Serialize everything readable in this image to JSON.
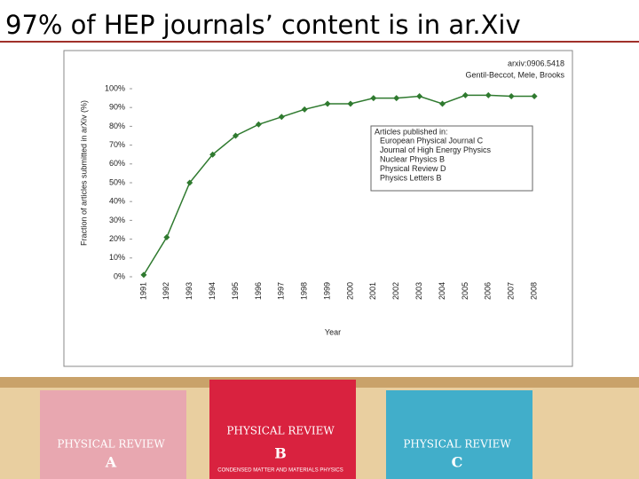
{
  "slide_title": "97% of HEP journals’ content is in ar.Xiv",
  "chart_data": {
    "type": "line",
    "annotations": [
      "arxiv:0906.5418",
      "Gentil-Beccot, Mele, Brooks"
    ],
    "y_label": "Fraction of articles submitted in arXiv (%)",
    "x_label": "Year",
    "legend_title": "Articles published in:",
    "legend_items": [
      "European Physical Journal C",
      "Journal of High Energy Physics",
      "Nuclear Physics B",
      "Physical Review D",
      "Physics Letters B"
    ],
    "categories": [
      "1991",
      "1992",
      "1993",
      "1994",
      "1995",
      "1996",
      "1997",
      "1998",
      "1999",
      "2000",
      "2001",
      "2002",
      "2003",
      "2004",
      "2005",
      "2006",
      "2007",
      "2008"
    ],
    "series": [
      {
        "color": "#2f7a2f",
        "values": [
          1,
          21,
          50,
          65,
          75,
          81,
          85,
          89,
          92,
          92,
          95,
          95,
          96,
          92,
          96.5,
          96.5,
          96,
          96
        ]
      }
    ],
    "ylim": [
      0,
      100
    ],
    "yticks": [
      {
        "value": 0,
        "label": "0%"
      },
      {
        "value": 10,
        "label": "10%"
      },
      {
        "value": 20,
        "label": "20%"
      },
      {
        "value": 30,
        "label": "30%"
      },
      {
        "value": 40,
        "label": "40%"
      },
      {
        "value": 50,
        "label": "50%"
      },
      {
        "value": 60,
        "label": "60%"
      },
      {
        "value": 70,
        "label": "70%"
      },
      {
        "value": 80,
        "label": "80%"
      },
      {
        "value": 90,
        "label": "90%"
      },
      {
        "value": 100,
        "label": "100%"
      }
    ]
  },
  "photo": {
    "books": [
      {
        "title": "Physical Review",
        "letter": "A"
      },
      {
        "title": "Physical Review",
        "letter": "B",
        "subtitle": "Condensed Matter and Materials Physics"
      },
      {
        "title": "Physical Review",
        "letter": "C"
      }
    ]
  }
}
